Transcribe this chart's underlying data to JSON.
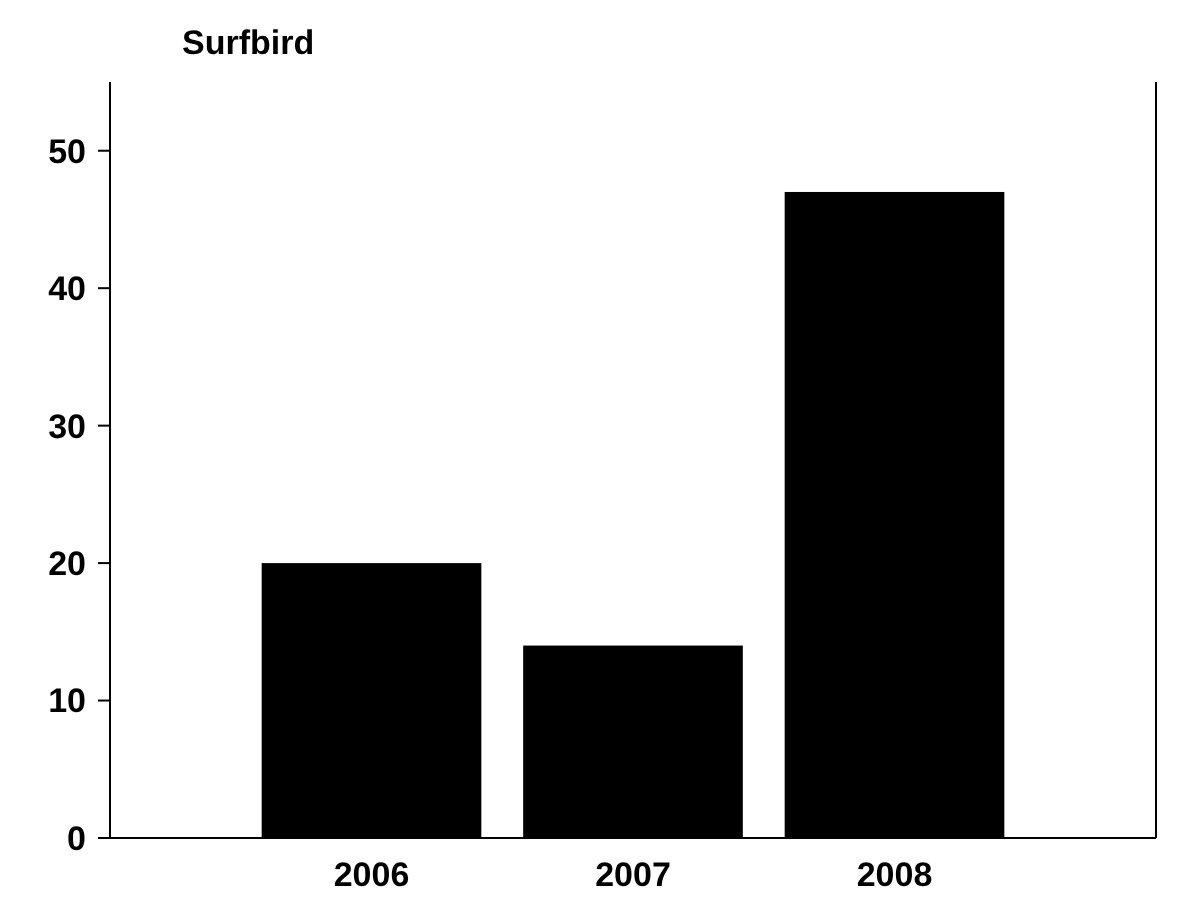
{
  "chart_data": {
    "type": "bar",
    "title": "Surfbird",
    "x": [
      2006,
      2007,
      2008
    ],
    "values": [
      20,
      14,
      47
    ],
    "color": "#000000",
    "xlim": [
      2005,
      2009
    ],
    "xticks": [
      2006,
      2007,
      2008
    ],
    "ylim": [
      0,
      55
    ],
    "yticks": [
      0,
      10,
      20,
      30,
      40,
      50
    ]
  }
}
